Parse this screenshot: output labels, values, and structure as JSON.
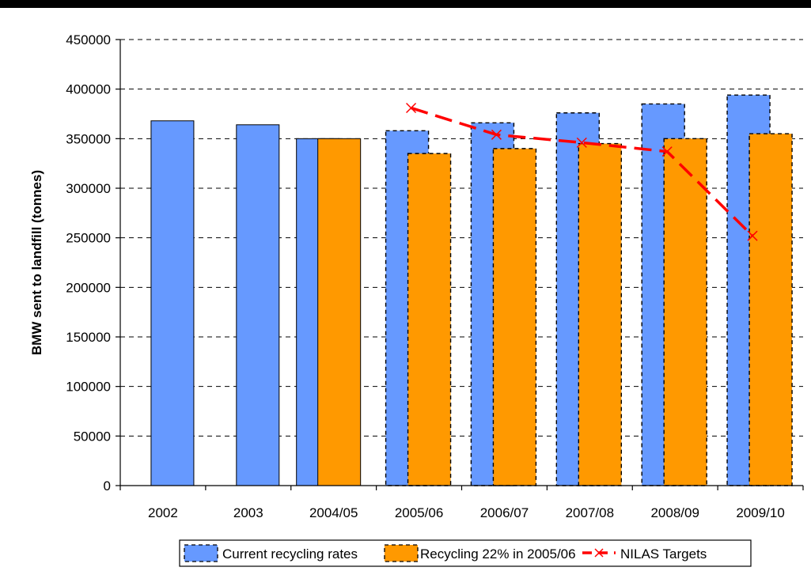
{
  "colors": {
    "current": "#6699ff",
    "recycling": "#ff9900",
    "target": "#ff0000",
    "grid": "#000000",
    "topRule": "#000000"
  },
  "chart_data": {
    "type": "bar",
    "categories": [
      "2002",
      "2003",
      "2004/05",
      "2005/06",
      "2006/07",
      "2007/08",
      "2008/09",
      "2009/10"
    ],
    "ylabel": "BMW sent to landfill (tonnes)",
    "xlabel": "",
    "ylim": [
      0,
      450000
    ],
    "yticks": [
      0,
      50000,
      100000,
      150000,
      200000,
      250000,
      300000,
      350000,
      400000,
      450000
    ],
    "grid": "horizontal dashed",
    "legend_position": "bottom",
    "series": [
      {
        "name": "Current recycling rates",
        "kind": "bar",
        "values": [
          368000,
          364000,
          350000,
          358000,
          366000,
          376000,
          385000,
          394000
        ],
        "dashed_border_from_index": 3
      },
      {
        "name": "Recycling 22% in 2005/06",
        "kind": "bar",
        "values": [
          null,
          null,
          350000,
          335000,
          340000,
          345000,
          350000,
          355000
        ],
        "dashed_border_from_index": 3
      },
      {
        "name": "NILAS Targets",
        "kind": "line",
        "style": "dashed with x markers",
        "values": [
          null,
          null,
          null,
          381000,
          354000,
          346000,
          337000,
          252000
        ]
      }
    ]
  }
}
